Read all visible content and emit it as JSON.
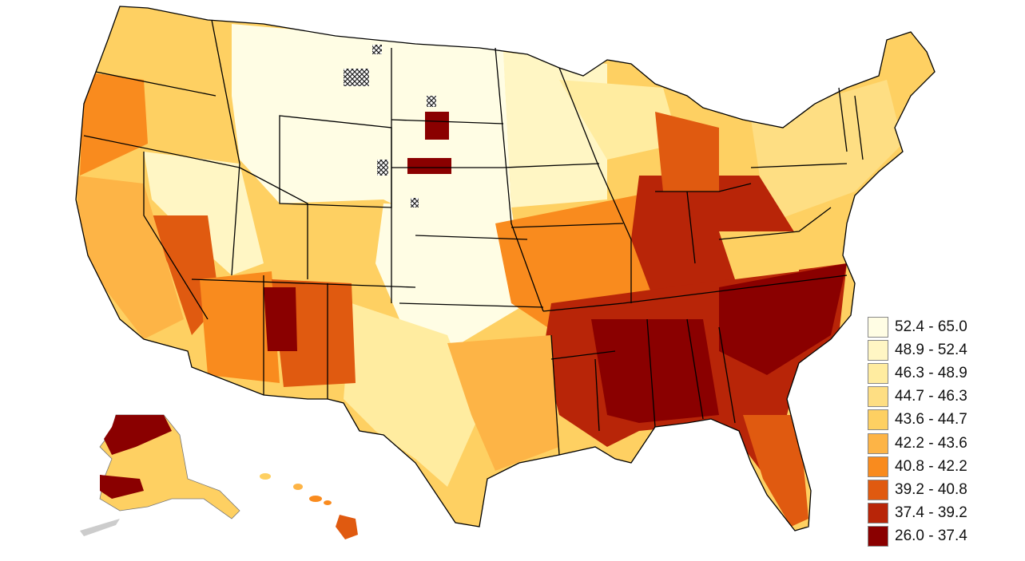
{
  "legend": {
    "items": [
      {
        "label": "52.4 - 65.0",
        "color": "#fffde4"
      },
      {
        "label": "48.9 - 52.4",
        "color": "#fff6c4"
      },
      {
        "label": "46.3 - 48.9",
        "color": "#ffeca0"
      },
      {
        "label": "44.7 - 46.3",
        "color": "#fede83"
      },
      {
        "label": "43.6 - 44.7",
        "color": "#fed062"
      },
      {
        "label": "42.2 - 43.6",
        "color": "#fdb446"
      },
      {
        "label": "40.8 - 42.2",
        "color": "#f98b1e"
      },
      {
        "label": "39.2 - 40.8",
        "color": "#e05a10"
      },
      {
        "label": "37.4 - 39.2",
        "color": "#b82508"
      },
      {
        "label": "26.0 - 37.4",
        "color": "#8a0000"
      }
    ]
  },
  "no_data_pattern": "cross-hatch"
}
